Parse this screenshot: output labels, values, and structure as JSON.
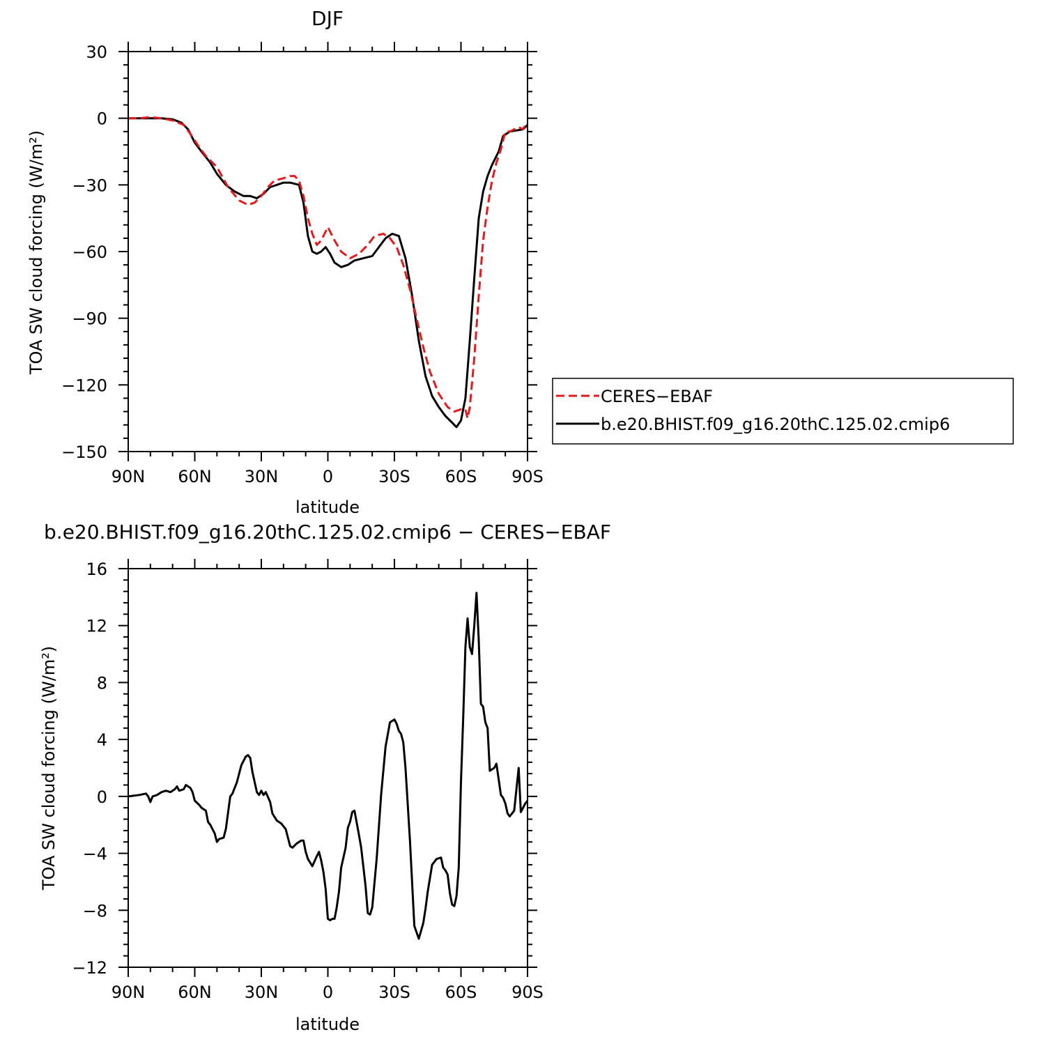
{
  "chart_data": [
    {
      "type": "line",
      "title": "DJF",
      "xlabel": "latitude",
      "ylabel": "TOA SW cloud forcing (W/m²)",
      "xlim": [
        -90,
        90
      ],
      "ylim": [
        -150,
        30
      ],
      "x_ticks": [
        -90,
        -60,
        -30,
        0,
        30,
        60,
        90
      ],
      "x_tick_labels": [
        "90N",
        "60N",
        "30N",
        "0",
        "30S",
        "60S",
        "90S"
      ],
      "y_ticks": [
        30,
        0,
        -30,
        -60,
        -90,
        -120,
        -150
      ],
      "y_tick_labels": [
        "30",
        "0",
        "−30",
        "−60",
        "−90",
        "−120",
        "−150"
      ],
      "grid": false,
      "legend_position": "right",
      "series": [
        {
          "name": "CERES−EBAF",
          "color": "#e31a1c",
          "style": "dashed",
          "x": [
            -90,
            -85,
            -80,
            -75,
            -70,
            -65,
            -62,
            -58,
            -55,
            -50,
            -45,
            -40,
            -36,
            -33,
            -30,
            -27,
            -24,
            -20,
            -17,
            -15,
            -13,
            -11,
            -9,
            -7,
            -5,
            -3,
            0,
            3,
            6,
            10,
            14,
            18,
            21,
            25,
            28,
            31,
            34,
            37,
            40,
            43,
            46,
            50,
            54,
            57,
            60,
            62,
            63,
            64,
            66,
            68,
            70,
            72,
            74,
            76,
            78,
            80,
            82,
            84,
            86,
            88,
            89,
            90
          ],
          "y": [
            0,
            0,
            0.5,
            0,
            -1,
            -3,
            -7,
            -13,
            -17,
            -22,
            -31,
            -37,
            -39,
            -38,
            -35,
            -31,
            -28,
            -27,
            -26,
            -26,
            -28,
            -35,
            -45,
            -52,
            -57,
            -55,
            -49,
            -55,
            -60,
            -63,
            -61,
            -57,
            -53,
            -52,
            -54,
            -58,
            -66,
            -77,
            -90,
            -103,
            -114,
            -124,
            -130,
            -132,
            -131,
            -131,
            -135,
            -130,
            -108,
            -80,
            -55,
            -40,
            -28,
            -20,
            -14,
            -6,
            -6,
            -5,
            -4,
            -5,
            -3,
            -3
          ]
        },
        {
          "name": "b.e20.BHIST.f09_g16.20thC.125.02.cmip6",
          "color": "#000000",
          "style": "solid",
          "x": [
            -90,
            -85,
            -80,
            -75,
            -70,
            -66,
            -63,
            -60,
            -57,
            -53,
            -50,
            -46,
            -42,
            -38,
            -35,
            -32,
            -29,
            -26,
            -23,
            -20,
            -17,
            -15,
            -13,
            -11,
            -9,
            -7,
            -5,
            -3,
            -1,
            1,
            3,
            6,
            9,
            12,
            16,
            20,
            23,
            26,
            29,
            32,
            35,
            38,
            41,
            44,
            47,
            50,
            53,
            56,
            58,
            60,
            62,
            64,
            66,
            68,
            70,
            72,
            74,
            77,
            79,
            82,
            85,
            88,
            90
          ],
          "y": [
            0,
            0,
            0,
            0,
            -0.5,
            -2,
            -5,
            -11,
            -15,
            -20,
            -25,
            -30,
            -33,
            -35,
            -35,
            -36,
            -34,
            -31,
            -30,
            -29,
            -29,
            -29.5,
            -30,
            -38,
            -53,
            -60,
            -61,
            -60,
            -58,
            -61,
            -65,
            -67,
            -66,
            -64,
            -63,
            -62,
            -58,
            -54,
            -52,
            -53,
            -63,
            -80,
            -100,
            -116,
            -125,
            -130,
            -134,
            -137,
            -139,
            -136,
            -126,
            -100,
            -72,
            -45,
            -33,
            -26,
            -21,
            -15,
            -8,
            -6,
            -5.5,
            -5,
            -3
          ]
        }
      ]
    },
    {
      "type": "line",
      "title": "b.e20.BHIST.f09_g16.20thC.125.02.cmip6 − CERES−EBAF",
      "xlabel": "latitude",
      "ylabel": "TOA SW cloud forcing (W/m²)",
      "xlim": [
        -90,
        90
      ],
      "ylim": [
        -12,
        16
      ],
      "x_ticks": [
        -90,
        -60,
        -30,
        0,
        30,
        60,
        90
      ],
      "x_tick_labels": [
        "90N",
        "60N",
        "30N",
        "0",
        "30S",
        "60S",
        "90S"
      ],
      "y_ticks": [
        16,
        12,
        8,
        4,
        0,
        -4,
        -8,
        -12
      ],
      "y_tick_labels": [
        "16",
        "12",
        "8",
        "4",
        "0",
        "−4",
        "−8",
        "−12"
      ],
      "grid": false,
      "series": [
        {
          "color": "#000000",
          "style": "solid",
          "x": [
            -90,
            -85,
            -82,
            -81,
            -80,
            -79,
            -77,
            -75,
            -73,
            -71,
            -69,
            -68,
            -67,
            -65,
            -64,
            -62,
            -61,
            -60,
            -58,
            -57,
            -55,
            -54,
            -53,
            -51,
            -50,
            -49,
            -47,
            -46,
            -44,
            -43,
            -41,
            -39,
            -37,
            -36,
            -35,
            -34,
            -32,
            -31,
            -30,
            -29,
            -28,
            -26,
            -25,
            -23,
            -21,
            -20,
            -19,
            -17,
            -16,
            -14,
            -12,
            -11,
            -10,
            -9,
            -7,
            -5,
            -4,
            -3,
            -2,
            -1,
            0,
            1,
            2,
            3,
            4,
            5,
            6,
            8,
            9,
            10,
            11,
            12,
            14,
            15,
            17,
            18,
            19,
            20,
            22,
            24,
            26,
            28,
            30,
            31,
            32,
            33,
            34,
            35,
            37,
            39,
            41,
            43,
            44,
            45,
            47,
            49,
            51,
            52,
            53,
            54,
            55,
            56,
            57,
            58,
            59,
            60,
            61,
            62,
            63,
            64,
            65,
            66,
            67,
            68,
            69,
            70,
            71,
            72,
            73,
            74,
            75,
            76,
            77,
            78,
            79,
            80,
            81,
            82,
            83,
            84,
            85,
            86,
            87,
            88,
            89,
            90
          ],
          "y": [
            0,
            0.1,
            0.2,
            0,
            -0.4,
            0,
            0.1,
            0.3,
            0.4,
            0.3,
            0.5,
            0.7,
            0.4,
            0.5,
            0.8,
            0.6,
            0.3,
            -0.3,
            -0.6,
            -0.8,
            -1.0,
            -1.8,
            -2.0,
            -2.6,
            -3.2,
            -3.0,
            -2.9,
            -2.3,
            0,
            0.2,
            1.0,
            2.2,
            2.8,
            2.9,
            2.7,
            1.7,
            0.3,
            0.1,
            0.4,
            0.1,
            0.3,
            -0.4,
            -1.2,
            -1.7,
            -1.9,
            -2.1,
            -2.3,
            -3.5,
            -3.6,
            -3.3,
            -3.1,
            -3.1,
            -3.9,
            -4.4,
            -4.9,
            -4.2,
            -3.9,
            -4.5,
            -5.3,
            -6.5,
            -8.6,
            -8.7,
            -8.6,
            -8.6,
            -7.8,
            -6.7,
            -5.0,
            -3.6,
            -2.2,
            -1.8,
            -1.1,
            -1.0,
            -2.7,
            -3.6,
            -6.3,
            -8.2,
            -8.3,
            -7.8,
            -4.4,
            0.1,
            3.5,
            5.2,
            5.4,
            5.1,
            4.6,
            4.4,
            3.8,
            2.0,
            -3.1,
            -9.1,
            -10.0,
            -8.9,
            -7.9,
            -6.7,
            -4.8,
            -4.4,
            -4.3,
            -5.0,
            -5.2,
            -5.5,
            -6.8,
            -7.6,
            -7.7,
            -7.0,
            -5.0,
            1.0,
            5.5,
            10.5,
            12.5,
            10.5,
            10.0,
            12.0,
            14.3,
            11.0,
            6.5,
            6.3,
            5.2,
            4.8,
            1.8,
            1.9,
            2.0,
            2.3,
            1.2,
            0.1,
            -0.1,
            -0.5,
            -1.2,
            -1.4,
            -1.2,
            -1.0,
            0.5,
            2.0,
            -1.1,
            -0.8,
            -0.5,
            -0.3
          ]
        }
      ]
    }
  ],
  "legend": {
    "entries": [
      "CERES−EBAF",
      "b.e20.BHIST.f09_g16.20thC.125.02.cmip6"
    ]
  }
}
